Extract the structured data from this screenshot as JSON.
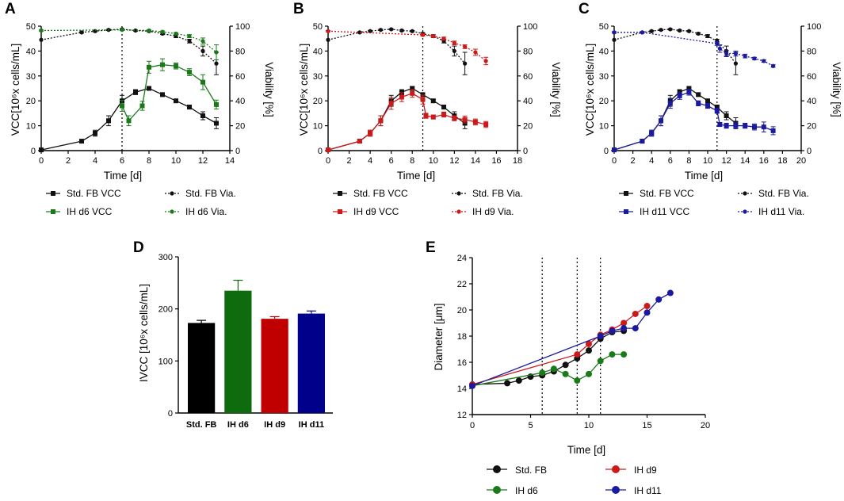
{
  "figure": {
    "panels": {
      "A": {
        "letter": "A",
        "xlabel": "Time [d]",
        "ylabel": "VCC[10⁶x cells/mL]",
        "y2label": "Viability [%]"
      },
      "B": {
        "letter": "B",
        "xlabel": "Time [d]",
        "ylabel": "VCC[10⁶x cells/mL]",
        "y2label": "Viability [%]"
      },
      "C": {
        "letter": "C",
        "xlabel": "Time [d]",
        "ylabel": "VCC[10⁶x cells/mL]",
        "y2label": "Viability [%]"
      },
      "D": {
        "letter": "D",
        "ylabel": "IVCC [10⁶x cells/mL]"
      },
      "E": {
        "letter": "E",
        "xlabel": "Time  [d]",
        "ylabel": "Diameter [μm]"
      }
    },
    "colors": {
      "std": "#111111",
      "d6": "#1a7a1a",
      "d9": "#cc1a1a",
      "d11": "#1a1aa0"
    }
  },
  "chart_data": [
    {
      "id": "A",
      "type": "line",
      "dual_axis": true,
      "xlim": [
        0,
        14
      ],
      "xticks": [
        0,
        2,
        4,
        6,
        8,
        10,
        12,
        14
      ],
      "ylim": [
        0,
        50
      ],
      "yticks": [
        0,
        10,
        20,
        30,
        40,
        50
      ],
      "y2lim": [
        0,
        100
      ],
      "y2ticks": [
        0,
        20,
        40,
        60,
        80,
        100
      ],
      "vline": 6,
      "series": [
        {
          "name": "Std. FB VCC",
          "axis": "left",
          "style": "solid",
          "marker": "square",
          "color": "#111111",
          "x": [
            0,
            3,
            4,
            5,
            6,
            7,
            8,
            9,
            10,
            11,
            12,
            13
          ],
          "y": [
            0.3,
            3.8,
            7.0,
            12.0,
            20.0,
            23.5,
            25.0,
            22.5,
            20.0,
            17.5,
            14.0,
            11.0
          ],
          "err": [
            0,
            0.6,
            1.2,
            2.0,
            2.2,
            1.0,
            0.6,
            0.6,
            0.6,
            0.8,
            1.6,
            2.2
          ]
        },
        {
          "name": "IH d6 VCC",
          "axis": "left",
          "style": "solid",
          "marker": "square",
          "color": "#1a7a1a",
          "x": [
            6,
            6.5,
            7.5,
            8,
            9,
            10,
            11,
            12,
            13
          ],
          "y": [
            18.0,
            12.0,
            18.0,
            33.5,
            34.5,
            34.0,
            31.5,
            27.5,
            18.5
          ],
          "err": [
            2.2,
            2.0,
            1.8,
            2.4,
            2.4,
            1.2,
            1.4,
            3.0,
            1.8
          ]
        },
        {
          "name": "Std. FB Via.",
          "axis": "right",
          "style": "dashed",
          "marker": "circle",
          "color": "#111111",
          "x": [
            0,
            3,
            4,
            5,
            6,
            7,
            8,
            9,
            10,
            11,
            12,
            13
          ],
          "y": [
            89.0,
            95.0,
            96.0,
            97.0,
            97.5,
            96.5,
            96.0,
            94.0,
            92.0,
            88.0,
            80.0,
            70.0
          ],
          "err": [
            0,
            0.6,
            0.6,
            0.5,
            0.5,
            0.5,
            0.5,
            0.8,
            1.2,
            1.5,
            4.0,
            9.0
          ]
        },
        {
          "name": "IH d6 Via.",
          "axis": "right",
          "style": "dashed",
          "marker": "circle",
          "color": "#1a7a1a",
          "x": [
            0,
            6,
            8,
            9,
            10,
            11,
            12,
            13
          ],
          "y": [
            96.5,
            97.0,
            96.5,
            95.5,
            94.0,
            92.0,
            88.0,
            79.0
          ],
          "err": [
            0.5,
            0.5,
            0.5,
            0.6,
            0.8,
            1.2,
            2.5,
            6.0
          ]
        }
      ],
      "legend": [
        "Std. FB VCC",
        "Std. FB Via.",
        "IH d6 VCC",
        "IH d6 Via."
      ]
    },
    {
      "id": "B",
      "type": "line",
      "dual_axis": true,
      "xlim": [
        0,
        18
      ],
      "xticks": [
        0,
        2,
        4,
        6,
        8,
        10,
        12,
        14,
        16,
        18
      ],
      "ylim": [
        0,
        50
      ],
      "yticks": [
        0,
        10,
        20,
        30,
        40,
        50
      ],
      "y2lim": [
        0,
        100
      ],
      "y2ticks": [
        0,
        20,
        40,
        60,
        80,
        100
      ],
      "vline": 9,
      "series": [
        {
          "name": "Std. FB VCC",
          "axis": "left",
          "style": "solid",
          "marker": "square",
          "color": "#111111",
          "x": [
            0,
            3,
            4,
            5,
            6,
            7,
            8,
            9,
            10,
            11,
            12,
            13
          ],
          "y": [
            0.3,
            3.8,
            7.0,
            12.0,
            20.0,
            23.5,
            25.0,
            22.5,
            20.0,
            17.5,
            14.0,
            11.0
          ],
          "err": [
            0,
            0.6,
            1.2,
            2.0,
            2.2,
            1.0,
            0.6,
            0.6,
            0.6,
            0.8,
            1.6,
            2.2
          ]
        },
        {
          "name": "IH d9 VCC",
          "axis": "left",
          "style": "solid",
          "marker": "square",
          "color": "#cc1a1a",
          "x": [
            0,
            3,
            4,
            5,
            6,
            7,
            8,
            9,
            9.3,
            10,
            11,
            12,
            13,
            14,
            15
          ],
          "y": [
            0.3,
            3.8,
            7.0,
            12.0,
            19.0,
            21.5,
            23.0,
            20.5,
            14.0,
            13.5,
            14.5,
            13.0,
            12.5,
            11.5,
            10.5
          ],
          "err": [
            0,
            0.6,
            1.2,
            2.0,
            2.4,
            1.8,
            1.6,
            1.8,
            1.0,
            0.8,
            1.0,
            1.0,
            1.4,
            1.2,
            1.2
          ]
        },
        {
          "name": "Std. FB Via.",
          "axis": "right",
          "style": "dashed",
          "marker": "circle",
          "color": "#111111",
          "x": [
            0,
            3,
            4,
            5,
            6,
            7,
            8,
            9,
            10,
            11,
            12,
            13
          ],
          "y": [
            89.0,
            95.0,
            96.0,
            97.0,
            97.5,
            96.5,
            96.0,
            94.0,
            92.0,
            88.0,
            80.0,
            70.0
          ],
          "err": [
            0,
            0.6,
            0.6,
            0.5,
            0.5,
            0.5,
            0.5,
            0.8,
            1.2,
            1.5,
            4.0,
            9.0
          ]
        },
        {
          "name": "IH d9 Via.",
          "axis": "right",
          "style": "dashed",
          "marker": "circle",
          "color": "#cc1a1a",
          "x": [
            0,
            9,
            10,
            11,
            12,
            13,
            14,
            15
          ],
          "y": [
            96.0,
            93.0,
            92.0,
            90.0,
            86.5,
            83.5,
            79.0,
            72.0
          ],
          "err": [
            0.5,
            1.0,
            1.0,
            1.2,
            1.5,
            1.5,
            2.5,
            3.0
          ]
        }
      ],
      "legend": [
        "Std. FB VCC",
        "Std. FB Via.",
        "IH d9 VCC",
        "IH d9 Via."
      ]
    },
    {
      "id": "C",
      "type": "line",
      "dual_axis": true,
      "xlim": [
        0,
        20
      ],
      "xticks": [
        0,
        2,
        4,
        6,
        8,
        10,
        12,
        14,
        16,
        18,
        20
      ],
      "ylim": [
        0,
        50
      ],
      "yticks": [
        0,
        10,
        20,
        30,
        40,
        50
      ],
      "y2lim": [
        0,
        100
      ],
      "y2ticks": [
        0,
        20,
        40,
        60,
        80,
        100
      ],
      "vline": 11,
      "series": [
        {
          "name": "Std. FB VCC",
          "axis": "left",
          "style": "solid",
          "marker": "square",
          "color": "#111111",
          "x": [
            0,
            3,
            4,
            5,
            6,
            7,
            8,
            9,
            10,
            11,
            12,
            13
          ],
          "y": [
            0.3,
            3.8,
            7.0,
            12.0,
            20.0,
            23.5,
            25.0,
            22.5,
            20.0,
            17.5,
            14.0,
            11.0
          ],
          "err": [
            0,
            0.6,
            1.2,
            2.0,
            2.2,
            1.0,
            0.6,
            0.6,
            0.6,
            0.8,
            1.6,
            2.2
          ]
        },
        {
          "name": "IH d11 VCC",
          "axis": "left",
          "style": "solid",
          "marker": "square",
          "color": "#1a1aa0",
          "x": [
            0,
            3,
            4,
            5,
            6,
            7,
            8,
            9,
            10,
            11,
            11.3,
            12,
            13,
            14,
            15,
            16,
            17
          ],
          "y": [
            0.3,
            3.8,
            7.0,
            12.0,
            19.0,
            22.0,
            23.5,
            19.0,
            18.0,
            16.0,
            10.5,
            10.0,
            10.0,
            10.0,
            9.5,
            9.5,
            8.0
          ],
          "err": [
            0,
            0.6,
            1.2,
            2.0,
            2.0,
            1.4,
            1.2,
            1.0,
            1.0,
            1.0,
            0.8,
            1.0,
            1.2,
            1.0,
            1.2,
            2.0,
            1.6
          ]
        },
        {
          "name": "Std. FB Via.",
          "axis": "right",
          "style": "dashed",
          "marker": "circle",
          "color": "#111111",
          "x": [
            0,
            3,
            4,
            5,
            6,
            7,
            8,
            9,
            10,
            11,
            12,
            13
          ],
          "y": [
            89.0,
            95.0,
            96.0,
            97.0,
            97.5,
            96.5,
            96.0,
            94.0,
            92.0,
            88.0,
            80.0,
            70.0
          ],
          "err": [
            0,
            0.6,
            0.6,
            0.5,
            0.5,
            0.5,
            0.5,
            0.8,
            1.2,
            1.5,
            4.0,
            9.0
          ]
        },
        {
          "name": "IH d11 Via.",
          "axis": "right",
          "style": "dashed",
          "marker": "circle",
          "color": "#1a1aa0",
          "x": [
            0,
            3,
            11,
            11.3,
            12,
            13,
            14,
            15,
            16,
            17
          ],
          "y": [
            95.0,
            95.0,
            86.0,
            82.0,
            78.0,
            78.0,
            76.0,
            74.0,
            72.0,
            68.0
          ],
          "err": [
            0.6,
            0.6,
            1.5,
            3.0,
            2.5,
            2.0,
            1.5,
            1.0,
            1.0,
            1.0
          ]
        }
      ],
      "legend": [
        "Std. FB VCC",
        "Std. FB Via.",
        "IH d11 VCC",
        "IH d11 Via."
      ]
    },
    {
      "id": "D",
      "type": "bar",
      "categories": [
        "Std. FB",
        "IH d6",
        "IH d9",
        "IH d11"
      ],
      "values": [
        173,
        235,
        181,
        191
      ],
      "errors": [
        5,
        20,
        4,
        5
      ],
      "colors": [
        "#000000",
        "#0e6b0e",
        "#c00000",
        "#00008b"
      ],
      "ylim": [
        0,
        300
      ],
      "yticks": [
        0,
        100,
        200,
        300
      ],
      "ylabel": "IVCC [10⁶x cells/mL]"
    },
    {
      "id": "E",
      "type": "line",
      "xlim": [
        0,
        20
      ],
      "xticks": [
        0,
        5,
        10,
        15,
        20
      ],
      "ylim": [
        12,
        24
      ],
      "yticks": [
        12,
        14,
        16,
        18,
        20,
        22,
        24
      ],
      "vlines": [
        6,
        9,
        11
      ],
      "series": [
        {
          "name": "Std. FB",
          "color": "#111111",
          "x": [
            0,
            3,
            4,
            5,
            6,
            7,
            8,
            9,
            10,
            11,
            12,
            13
          ],
          "y": [
            14.3,
            14.4,
            14.6,
            14.9,
            15.0,
            15.3,
            15.8,
            16.3,
            16.9,
            17.8,
            18.3,
            18.4
          ]
        },
        {
          "name": "IH d6",
          "color": "#1a7a1a",
          "x": [
            0,
            6,
            7,
            8,
            9,
            10,
            11,
            12,
            13
          ],
          "y": [
            14.2,
            15.2,
            15.5,
            15.1,
            14.6,
            15.1,
            16.1,
            16.6,
            16.6
          ]
        },
        {
          "name": "IH d9",
          "color": "#cc1a1a",
          "x": [
            0,
            9,
            10,
            11,
            12,
            13,
            14,
            15
          ],
          "y": [
            14.3,
            16.6,
            17.4,
            18.1,
            18.5,
            19.0,
            19.7,
            20.3
          ]
        },
        {
          "name": "IH d11",
          "color": "#1a1aa0",
          "x": [
            0,
            11,
            12,
            13,
            14,
            15,
            16,
            17
          ],
          "y": [
            14.2,
            18.0,
            18.4,
            18.6,
            18.6,
            19.8,
            20.8,
            21.3
          ]
        }
      ],
      "legend": [
        "Std. FB",
        "IH d9",
        "IH d6",
        "IH d11"
      ]
    }
  ]
}
